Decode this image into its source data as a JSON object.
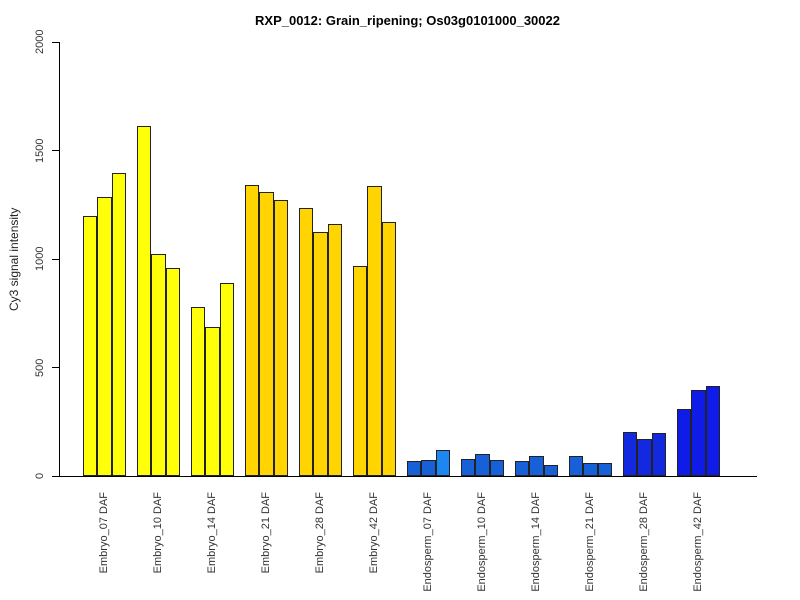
{
  "chart_data": {
    "type": "bar",
    "title": "RXP_0012: Grain_ripening; Os03g0101000_30022",
    "xlabel": "",
    "ylabel": "Cy3 signal intensity",
    "ylim": [
      0,
      2000
    ],
    "yticks": [
      0,
      500,
      1000,
      1500,
      2000
    ],
    "grid": false,
    "legend": "none",
    "bars_per_group": 3,
    "axis_color": "#000000",
    "bar_border_color": "#222222",
    "groups": [
      {
        "label": "Embryo_07 DAF",
        "color": "#FFFF0A",
        "values": [
          1200,
          1285,
          1395
        ]
      },
      {
        "label": "Embryo_10 DAF",
        "color": "#FFFF0A",
        "values": [
          1615,
          1025,
          960
        ]
      },
      {
        "label": "Embryo_14 DAF",
        "color": "#FFFF0A",
        "values": [
          780,
          685,
          890
        ]
      },
      {
        "label": "Embryo_21 DAF",
        "color": "#FFD400",
        "values": [
          1340,
          1310,
          1270
        ]
      },
      {
        "label": "Embryo_28 DAF",
        "color": "#FFD400",
        "values": [
          1235,
          1125,
          1160
        ]
      },
      {
        "label": "Embryo_42 DAF",
        "color": "#FFD400",
        "values": [
          970,
          1335,
          1170
        ]
      },
      {
        "label": "Endosperm_07 DAF",
        "color": "#1860D8",
        "values": [
          70,
          72,
          120
        ],
        "bar_colors": [
          "#1860D8",
          "#1860D8",
          "#1E86F0"
        ]
      },
      {
        "label": "Endosperm_10 DAF",
        "color": "#1860D8",
        "values": [
          80,
          100,
          75
        ]
      },
      {
        "label": "Endosperm_14 DAF",
        "color": "#1860D8",
        "values": [
          68,
          92,
          50
        ]
      },
      {
        "label": "Endosperm_21 DAF",
        "color": "#1860D8",
        "values": [
          92,
          62,
          58
        ]
      },
      {
        "label": "Endosperm_28 DAF",
        "color": "#1229E0",
        "values": [
          205,
          172,
          200
        ]
      },
      {
        "label": "Endosperm_42 DAF",
        "color": "#0F1CE8",
        "values": [
          310,
          395,
          415
        ]
      }
    ]
  }
}
